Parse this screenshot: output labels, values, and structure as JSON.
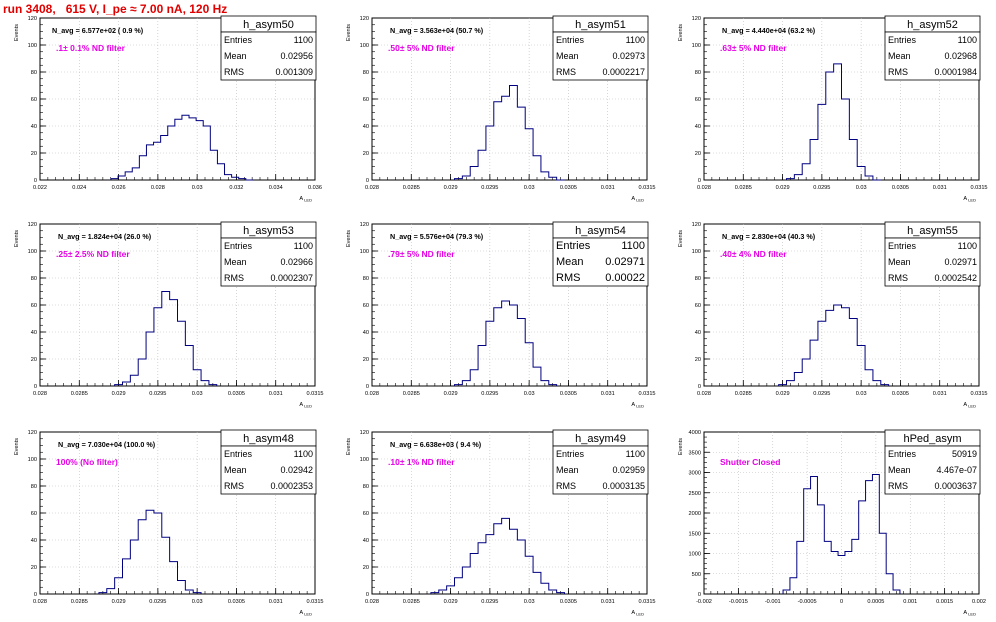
{
  "run_title": "run 3408,   615 V, I_pe ≈ 7.00 nA, 120 Hz",
  "colors": {
    "title": "#e00000",
    "annotation": "#e600e6",
    "histogram": "#000080",
    "grid": "#bbbbbb"
  },
  "stats_labels": {
    "entries": "Entries",
    "mean": "Mean",
    "rms": "RMS"
  },
  "chart_data": [
    {
      "type": "histogram",
      "name": "h_asym50",
      "navg": "N_avg = 6.577e+02 ( 0.9 %)",
      "note": ".1± 0.1% ND filter",
      "stats": {
        "entries": "1100",
        "mean": "0.02956",
        "rms": "0.001309"
      },
      "ylabel": "Events",
      "xlabel": "A_LED",
      "grid": true,
      "xlim": [
        0.022,
        0.0375
      ],
      "ylim": [
        0,
        120
      ],
      "xticks": [
        "0.022",
        "0.024",
        "0.026",
        "0.028",
        "0.03",
        "0.032",
        "0.034",
        "0.036"
      ],
      "yticks": [
        "0",
        "20",
        "40",
        "60",
        "80",
        "100",
        "120"
      ],
      "x": [
        0.0262,
        0.0266,
        0.027,
        0.0274,
        0.0278,
        0.0282,
        0.0286,
        0.029,
        0.0294,
        0.0298,
        0.0302,
        0.0306,
        0.031,
        0.0314,
        0.0318,
        0.0322,
        0.0326,
        0.033,
        0.0334,
        0.0338
      ],
      "values": [
        1,
        3,
        6,
        9,
        18,
        26,
        28,
        33,
        40,
        45,
        48,
        46,
        44,
        40,
        22,
        12,
        4,
        2,
        1,
        0
      ]
    },
    {
      "type": "histogram",
      "name": "h_asym51",
      "navg": "N_avg = 3.563e+04 (50.7 %)",
      "note": ".50± 5% ND filter",
      "stats": {
        "entries": "1100",
        "mean": "0.02973",
        "rms": "0.0002217"
      },
      "ylabel": "Events",
      "xlabel": "A_LED",
      "grid": true,
      "xlim": [
        0.028,
        0.0315
      ],
      "ylim": [
        0,
        120
      ],
      "xticks": [
        "0.028",
        "0.0285",
        "0.029",
        "0.0295",
        "0.03",
        "0.0305",
        "0.031",
        "0.0315"
      ],
      "yticks": [
        "0",
        "20",
        "40",
        "60",
        "80",
        "100",
        "120"
      ],
      "x": [
        0.0291,
        0.0292,
        0.0293,
        0.0294,
        0.0295,
        0.0296,
        0.0297,
        0.0298,
        0.0299,
        0.03,
        0.0301,
        0.0302,
        0.0303,
        0.0304
      ],
      "values": [
        1,
        3,
        10,
        22,
        40,
        58,
        62,
        70,
        54,
        38,
        18,
        6,
        2,
        0
      ]
    },
    {
      "type": "histogram",
      "name": "h_asym52",
      "navg": "N_avg = 4.440e+04 (63.2 %)",
      "note": ".63± 5% ND filter",
      "stats": {
        "entries": "1100",
        "mean": "0.02968",
        "rms": "0.0001984"
      },
      "ylabel": "Events",
      "xlabel": "A_LED",
      "grid": true,
      "xlim": [
        0.028,
        0.0315
      ],
      "ylim": [
        0,
        120
      ],
      "xticks": [
        "0.028",
        "0.0285",
        "0.029",
        "0.0295",
        "0.03",
        "0.0305",
        "0.031",
        "0.0315"
      ],
      "yticks": [
        "0",
        "20",
        "40",
        "60",
        "80",
        "100",
        "120"
      ],
      "x": [
        0.0291,
        0.0292,
        0.0293,
        0.0294,
        0.0295,
        0.0296,
        0.0297,
        0.0298,
        0.0299,
        0.03,
        0.0301,
        0.0302
      ],
      "values": [
        1,
        4,
        12,
        30,
        56,
        80,
        86,
        60,
        30,
        10,
        3,
        0
      ]
    },
    {
      "type": "histogram",
      "name": "h_asym53",
      "navg": "N_avg = 1.824e+04 (26.0 %)",
      "note": ".25± 2.5% ND filter",
      "stats": {
        "entries": "1100",
        "mean": "0.02966",
        "rms": "0.0002307"
      },
      "ylabel": "Events",
      "xlabel": "A_LED",
      "grid": true,
      "xlim": [
        0.028,
        0.0315
      ],
      "ylim": [
        0,
        120
      ],
      "xticks": [
        "0.028",
        "0.0285",
        "0.029",
        "0.0295",
        "0.03",
        "0.0305",
        "0.031",
        "0.0315"
      ],
      "yticks": [
        "0",
        "20",
        "40",
        "60",
        "80",
        "100",
        "120"
      ],
      "x": [
        0.029,
        0.0291,
        0.0292,
        0.0293,
        0.0294,
        0.0295,
        0.0296,
        0.0297,
        0.0298,
        0.0299,
        0.03,
        0.0301,
        0.0302
      ],
      "values": [
        1,
        3,
        8,
        20,
        40,
        58,
        70,
        64,
        48,
        30,
        12,
        4,
        1
      ]
    },
    {
      "type": "histogram",
      "name": "h_asym54",
      "navg": "N_avg = 5.576e+04 (79.3 %)",
      "note": ".79± 5% ND filter",
      "stats": {
        "entries": "1100",
        "mean": "0.02971",
        "rms": "0.00022"
      },
      "ylabel": "Events",
      "xlabel": "A_LED",
      "grid": true,
      "xlim": [
        0.028,
        0.0315
      ],
      "ylim": [
        0,
        120
      ],
      "xticks": [
        "0.028",
        "0.0285",
        "0.029",
        "0.0295",
        "0.03",
        "0.0305",
        "0.031",
        "0.0315"
      ],
      "yticks": [
        "0",
        "20",
        "40",
        "60",
        "80",
        "100",
        "120"
      ],
      "x": [
        0.0291,
        0.0292,
        0.0293,
        0.0294,
        0.0295,
        0.0296,
        0.0297,
        0.0298,
        0.0299,
        0.03,
        0.0301,
        0.0302,
        0.0303
      ],
      "values": [
        1,
        4,
        12,
        30,
        48,
        58,
        63,
        60,
        50,
        32,
        14,
        4,
        1
      ]
    },
    {
      "type": "histogram",
      "name": "h_asym55",
      "navg": "N_avg = 2.830e+04 (40.3 %)",
      "note": ".40± 4% ND filter",
      "stats": {
        "entries": "1100",
        "mean": "0.02971",
        "rms": "0.0002542"
      },
      "ylabel": "Events",
      "xlabel": "A_LED",
      "grid": true,
      "xlim": [
        0.028,
        0.0315
      ],
      "ylim": [
        0,
        120
      ],
      "xticks": [
        "0.028",
        "0.0285",
        "0.029",
        "0.0295",
        "0.03",
        "0.0305",
        "0.031",
        "0.0315"
      ],
      "yticks": [
        "0",
        "20",
        "40",
        "60",
        "80",
        "100",
        "120"
      ],
      "x": [
        0.029,
        0.0291,
        0.0292,
        0.0293,
        0.0294,
        0.0295,
        0.0296,
        0.0297,
        0.0298,
        0.0299,
        0.03,
        0.0301,
        0.0302,
        0.0303
      ],
      "values": [
        1,
        4,
        10,
        20,
        34,
        48,
        56,
        60,
        58,
        50,
        30,
        12,
        4,
        1
      ]
    },
    {
      "type": "histogram",
      "name": "h_asym48",
      "navg": "N_avg = 7.030e+04 (100.0 %)",
      "note": "100% (No filter)",
      "stats": {
        "entries": "1100",
        "mean": "0.02942",
        "rms": "0.0002353"
      },
      "ylabel": "Events",
      "xlabel": "A_LED",
      "grid": true,
      "xlim": [
        0.028,
        0.0315
      ],
      "ylim": [
        0,
        120
      ],
      "xticks": [
        "0.028",
        "0.0285",
        "0.029",
        "0.0295",
        "0.03",
        "0.0305",
        "0.031",
        "0.0315"
      ],
      "yticks": [
        "0",
        "20",
        "40",
        "60",
        "80",
        "100",
        "120"
      ],
      "x": [
        0.0288,
        0.0289,
        0.029,
        0.0291,
        0.0292,
        0.0293,
        0.0294,
        0.0295,
        0.0296,
        0.0297,
        0.0298,
        0.0299,
        0.03
      ],
      "values": [
        1,
        4,
        12,
        26,
        40,
        55,
        62,
        60,
        42,
        24,
        10,
        3,
        1
      ]
    },
    {
      "type": "histogram",
      "name": "h_asym49",
      "navg": "N_avg = 6.638e+03 ( 9.4 %)",
      "note": ".10± 1% ND filter",
      "stats": {
        "entries": "1100",
        "mean": "0.02959",
        "rms": "0.0003135"
      },
      "ylabel": "Events",
      "xlabel": "A_LED",
      "grid": true,
      "xlim": [
        0.028,
        0.0315
      ],
      "ylim": [
        0,
        120
      ],
      "xticks": [
        "0.028",
        "0.0285",
        "0.029",
        "0.0295",
        "0.03",
        "0.0305",
        "0.031",
        "0.0315"
      ],
      "yticks": [
        "0",
        "20",
        "40",
        "60",
        "80",
        "100",
        "120"
      ],
      "x": [
        0.0288,
        0.0289,
        0.029,
        0.0291,
        0.0292,
        0.0293,
        0.0294,
        0.0295,
        0.0296,
        0.0297,
        0.0298,
        0.0299,
        0.03,
        0.0301,
        0.0302,
        0.0303,
        0.0304
      ],
      "values": [
        1,
        3,
        6,
        12,
        20,
        30,
        38,
        44,
        52,
        56,
        48,
        40,
        28,
        16,
        8,
        3,
        1
      ]
    },
    {
      "type": "histogram",
      "name": "hPed_asym",
      "navg": "",
      "note": "Shutter Closed",
      "stats": {
        "entries": "50919",
        "mean": "4.467e-07",
        "rms": "0.0003637"
      },
      "ylabel": "Events",
      "xlabel": "A_LED",
      "grid": true,
      "xlim": [
        -0.002,
        0.002
      ],
      "ylim": [
        0,
        4000
      ],
      "xticks": [
        "-0.002",
        "-0.0015",
        "-0.001",
        "-0.0005",
        "0",
        "0.0005",
        "0.001",
        "0.0015",
        "0.002"
      ],
      "yticks": [
        "0",
        "500",
        "1000",
        "1500",
        "2000",
        "2500",
        "3000",
        "3500",
        "4000"
      ],
      "x": [
        -0.0008,
        -0.0007,
        -0.0006,
        -0.0005,
        -0.0004,
        -0.0003,
        -0.0002,
        -0.0001,
        0.0,
        0.0001,
        0.0002,
        0.0003,
        0.0004,
        0.0005,
        0.0006,
        0.0007,
        0.0008
      ],
      "values": [
        100,
        400,
        1300,
        2600,
        2900,
        2200,
        1300,
        1050,
        950,
        1050,
        1350,
        2300,
        2800,
        2950,
        1500,
        500,
        100
      ]
    }
  ]
}
